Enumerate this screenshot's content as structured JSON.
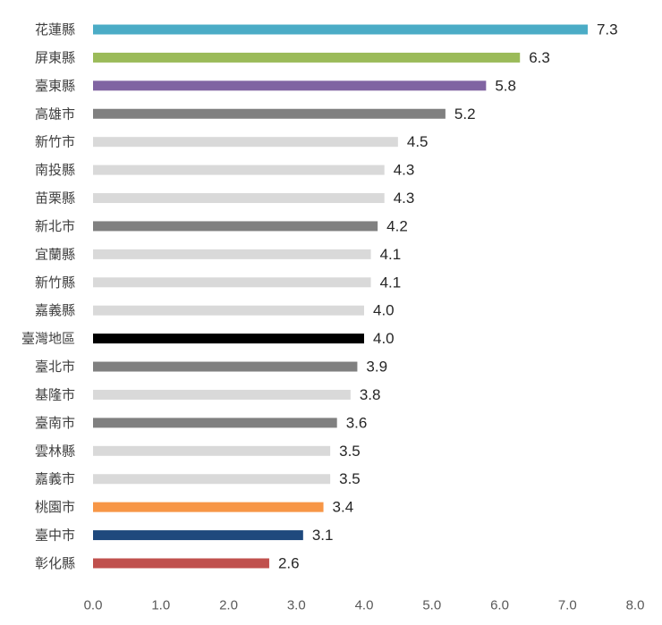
{
  "chart_data": {
    "type": "bar",
    "orientation": "horizontal",
    "title": "",
    "xlabel": "",
    "ylabel": "",
    "xlim": [
      0,
      8
    ],
    "grid": false,
    "x_ticks": [
      "0.0",
      "1.0",
      "2.0",
      "3.0",
      "4.0",
      "5.0",
      "6.0",
      "7.0",
      "8.0"
    ],
    "categories": [
      "花蓮縣",
      "屏東縣",
      "臺東縣",
      "高雄市",
      "新竹市",
      "南投縣",
      "苗栗縣",
      "新北市",
      "宜蘭縣",
      "新竹縣",
      "嘉義縣",
      "臺灣地區",
      "臺北市",
      "基隆市",
      "臺南市",
      "雲林縣",
      "嘉義市",
      "桃園市",
      "臺中市",
      "彰化縣"
    ],
    "values": [
      7.3,
      6.3,
      5.8,
      5.2,
      4.5,
      4.3,
      4.3,
      4.2,
      4.1,
      4.1,
      4.0,
      4.0,
      3.9,
      3.8,
      3.6,
      3.5,
      3.5,
      3.4,
      3.1,
      2.6
    ],
    "value_labels": [
      "7.3",
      "6.3",
      "5.8",
      "5.2",
      "4.5",
      "4.3",
      "4.3",
      "4.2",
      "4.1",
      "4.1",
      "4.0",
      "4.0",
      "3.9",
      "3.8",
      "3.6",
      "3.5",
      "3.5",
      "3.4",
      "3.1",
      "2.6"
    ],
    "colors": [
      "#4bacc6",
      "#9bbb59",
      "#8064a2",
      "#808080",
      "#d9d9d9",
      "#d9d9d9",
      "#d9d9d9",
      "#808080",
      "#d9d9d9",
      "#d9d9d9",
      "#d9d9d9",
      "#000000",
      "#808080",
      "#d9d9d9",
      "#808080",
      "#d9d9d9",
      "#d9d9d9",
      "#f79646",
      "#1f497d",
      "#c0504d"
    ]
  }
}
